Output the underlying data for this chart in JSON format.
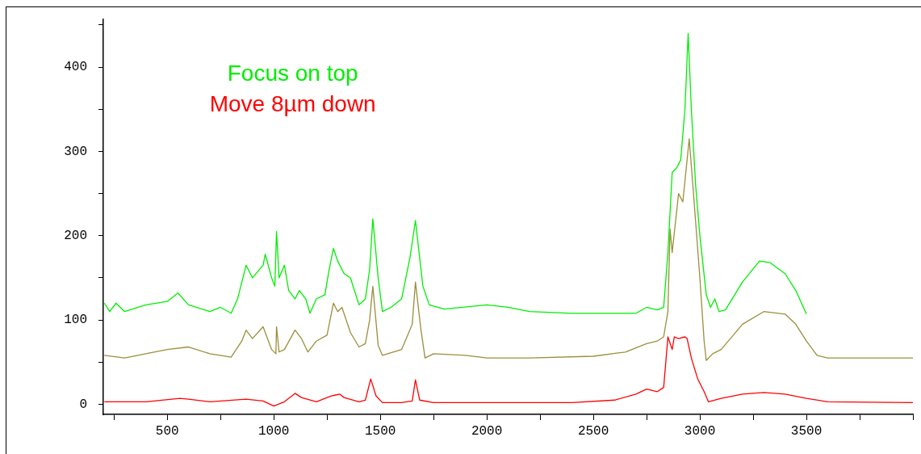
{
  "chart_data": {
    "type": "line",
    "legend": "top left",
    "grid": false,
    "marker": "none",
    "line_style": "solid",
    "xlim": [
      200,
      4000
    ],
    "ylim": [
      -12,
      457
    ],
    "xticks": [
      {
        "value": 250,
        "label": null
      },
      500,
      {
        "value": 750,
        "label": null
      },
      1000,
      {
        "value": 1250,
        "label": null
      },
      1500,
      {
        "value": 1750,
        "label": null
      },
      2000,
      {
        "value": 2250,
        "label": null
      },
      2500,
      {
        "value": 2750,
        "label": null
      },
      3000,
      {
        "value": 3250,
        "label": null
      },
      3500,
      {
        "value": 3750,
        "label": null
      },
      {
        "value": 4000,
        "label": null
      }
    ],
    "yticks": [
      0,
      {
        "value": 50,
        "label": null
      },
      100,
      {
        "value": 150,
        "label": null
      },
      200,
      {
        "value": 250,
        "label": null
      },
      300,
      {
        "value": 350,
        "label": null
      },
      400,
      {
        "value": 450,
        "label": null
      }
    ],
    "series": [
      {
        "name": "Focus on top",
        "color": "#00ee00",
        "x": [
          205,
          230,
          260,
          300,
          400,
          500,
          550,
          600,
          700,
          750,
          800,
          830,
          870,
          900,
          950,
          960,
          990,
          1005,
          1013,
          1025,
          1050,
          1070,
          1100,
          1120,
          1150,
          1170,
          1200,
          1240,
          1260,
          1280,
          1300,
          1330,
          1360,
          1400,
          1430,
          1450,
          1465,
          1490,
          1510,
          1550,
          1600,
          1640,
          1665,
          1700,
          1730,
          1800,
          2000,
          2100,
          2200,
          2400,
          2600,
          2700,
          2750,
          2800,
          2830,
          2850,
          2870,
          2890,
          2910,
          2930,
          2945,
          2960,
          2980,
          3000,
          3030,
          3050,
          3070,
          3090,
          3120,
          3200,
          3280,
          3330,
          3400,
          3450,
          3500
        ],
        "values": [
          120,
          110,
          120,
          110,
          118,
          122,
          132,
          118,
          110,
          115,
          108,
          125,
          165,
          150,
          165,
          178,
          150,
          140,
          205,
          150,
          165,
          135,
          125,
          135,
          125,
          108,
          125,
          130,
          160,
          185,
          170,
          155,
          150,
          118,
          125,
          160,
          220,
          150,
          110,
          115,
          125,
          175,
          218,
          140,
          118,
          113,
          118,
          115,
          110,
          108,
          108,
          108,
          115,
          112,
          115,
          180,
          275,
          280,
          290,
          350,
          440,
          350,
          260,
          200,
          130,
          115,
          125,
          110,
          112,
          145,
          170,
          168,
          155,
          135,
          107
        ]
      },
      {
        "color": "#9a8f3a",
        "x": [
          205,
          300,
          400,
          500,
          600,
          700,
          800,
          850,
          870,
          900,
          950,
          990,
          1010,
          1013,
          1025,
          1050,
          1100,
          1130,
          1160,
          1200,
          1250,
          1280,
          1300,
          1320,
          1360,
          1400,
          1430,
          1450,
          1465,
          1490,
          1510,
          1600,
          1650,
          1665,
          1690,
          1710,
          1750,
          1900,
          2000,
          2200,
          2500,
          2650,
          2750,
          2800,
          2830,
          2850,
          2860,
          2870,
          2900,
          2920,
          2940,
          2950,
          2970,
          3000,
          3020,
          3030,
          3060,
          3100,
          3200,
          3300,
          3400,
          3450,
          3500,
          3550,
          3600,
          3800,
          4000
        ],
        "values": [
          58,
          55,
          60,
          65,
          68,
          60,
          56,
          75,
          88,
          78,
          92,
          65,
          60,
          92,
          62,
          65,
          88,
          78,
          62,
          75,
          82,
          120,
          110,
          115,
          85,
          68,
          72,
          100,
          140,
          70,
          58,
          65,
          95,
          145,
          90,
          55,
          60,
          58,
          55,
          55,
          57,
          62,
          72,
          75,
          80,
          110,
          208,
          180,
          250,
          240,
          290,
          315,
          250,
          150,
          75,
          52,
          60,
          65,
          95,
          110,
          107,
          95,
          75,
          58,
          55,
          55,
          55
        ]
      },
      {
        "name": "Move 8µm down",
        "color": "#ff0000",
        "x": [
          205,
          400,
          560,
          600,
          700,
          870,
          950,
          1000,
          1050,
          1100,
          1130,
          1200,
          1270,
          1290,
          1310,
          1330,
          1400,
          1430,
          1455,
          1480,
          1510,
          1600,
          1650,
          1665,
          1685,
          1750,
          2000,
          2200,
          2400,
          2600,
          2700,
          2750,
          2800,
          2830,
          2850,
          2870,
          2880,
          2900,
          2930,
          2940,
          2960,
          2990,
          3020,
          3040,
          3100,
          3200,
          3300,
          3400,
          3500,
          3600,
          4000
        ],
        "values": [
          3,
          3,
          7,
          6,
          3,
          6,
          4,
          -2,
          3,
          13,
          8,
          3,
          10,
          11,
          12,
          8,
          3,
          5,
          30,
          10,
          2,
          2,
          4,
          29,
          5,
          2,
          2,
          2,
          2,
          5,
          12,
          18,
          15,
          20,
          80,
          65,
          80,
          78,
          80,
          78,
          55,
          30,
          15,
          3,
          7,
          12,
          14,
          12,
          7,
          3,
          2
        ]
      }
    ]
  }
}
